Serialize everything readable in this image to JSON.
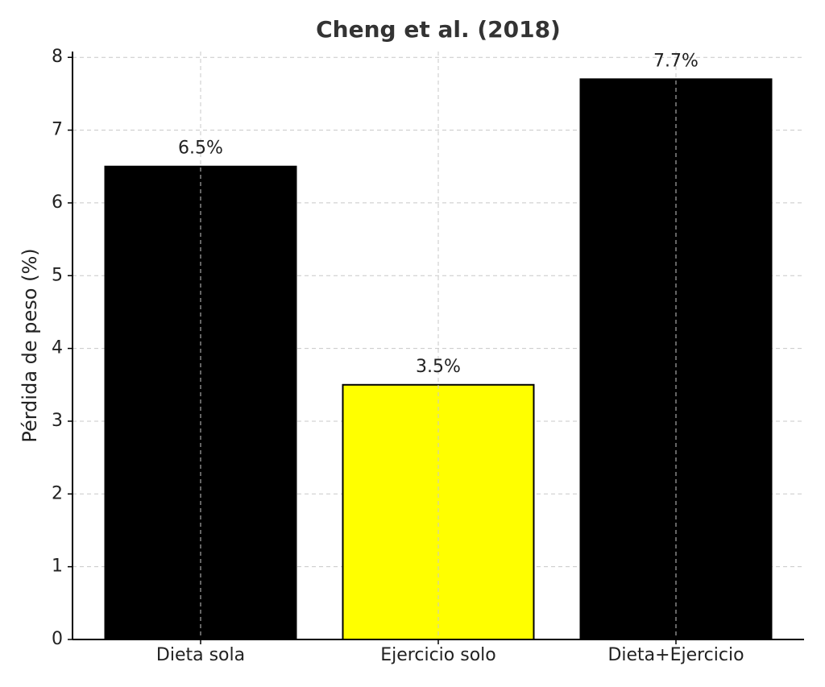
{
  "chart_data": {
    "type": "bar",
    "title": "Cheng et al. (2018)",
    "y_label": "Pérdida de peso (%)",
    "categories": [
      "Dieta sola",
      "Ejercicio solo",
      "Dieta+Ejercicio"
    ],
    "values": [
      6.5,
      3.5,
      7.7
    ],
    "value_labels": [
      "6.5%",
      "3.5%",
      "7.7%"
    ],
    "colors": [
      "#000000",
      "#ffff00",
      "#000000"
    ],
    "edge_color": "#000000",
    "ylim": [
      0,
      8.08
    ],
    "yticks": [
      0,
      1,
      2,
      3,
      4,
      5,
      6,
      7,
      8
    ],
    "grid": true
  }
}
